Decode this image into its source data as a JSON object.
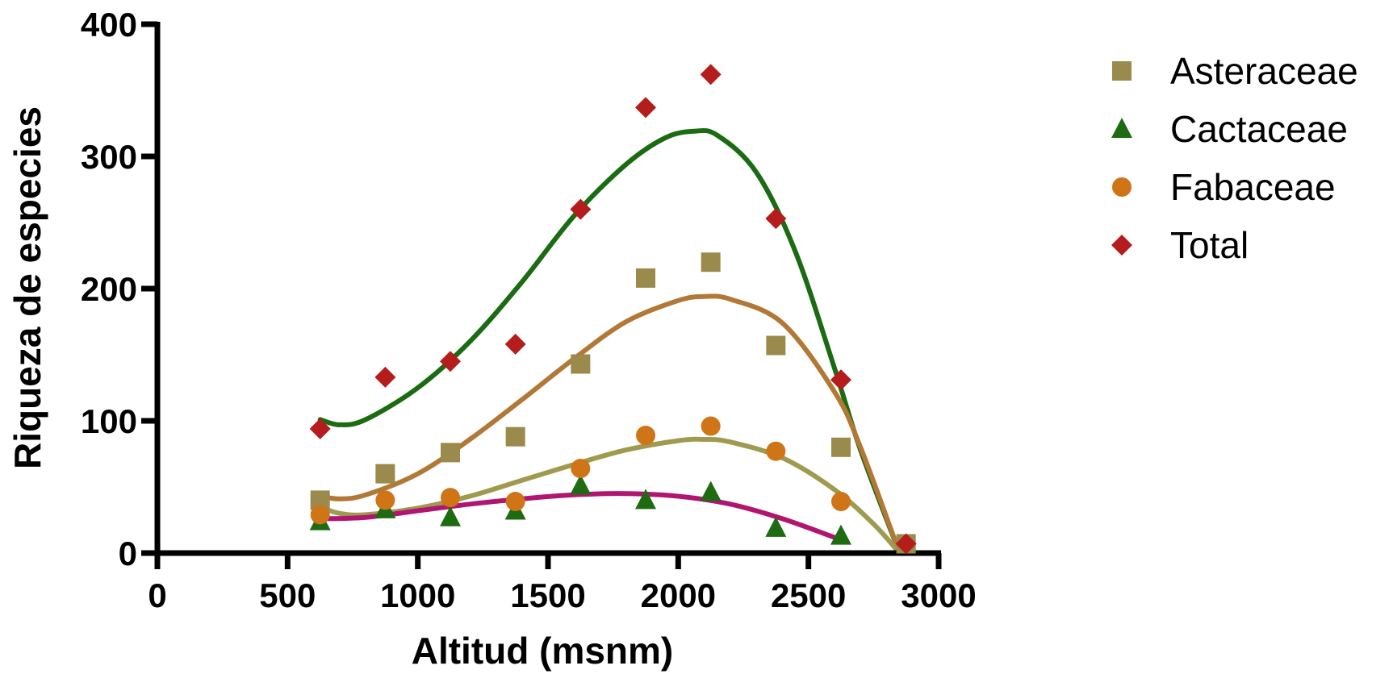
{
  "chart_data": {
    "type": "scatter",
    "xlabel": "Altitud (msnm)",
    "ylabel": "Riqueza de especies",
    "xlim": [
      0,
      3000
    ],
    "ylim": [
      0,
      400
    ],
    "x_ticks": [
      "0",
      "500",
      "1000",
      "1500",
      "2000",
      "2500",
      "3000"
    ],
    "y_ticks": [
      "0",
      "100",
      "200",
      "300",
      "400"
    ],
    "grid": false,
    "legend_position": "right",
    "series": [
      {
        "name": "Asteraceae",
        "marker": "square",
        "color": "#9A8A4C",
        "points": [
          [
            625,
            40
          ],
          [
            875,
            60
          ],
          [
            1125,
            76
          ],
          [
            1375,
            88
          ],
          [
            1625,
            143
          ],
          [
            1875,
            208
          ],
          [
            2125,
            220
          ],
          [
            2375,
            157
          ],
          [
            2625,
            80
          ],
          [
            2875,
            7
          ]
        ]
      },
      {
        "name": "Cactaceae",
        "marker": "triangle",
        "color": "#1E6B12",
        "points": [
          [
            625,
            24
          ],
          [
            875,
            33
          ],
          [
            1125,
            27
          ],
          [
            1375,
            32
          ],
          [
            1625,
            51
          ],
          [
            1875,
            40
          ],
          [
            2125,
            46
          ],
          [
            2375,
            19
          ],
          [
            2625,
            13
          ]
        ]
      },
      {
        "name": "Fabaceae",
        "marker": "circle",
        "color": "#D07418",
        "points": [
          [
            625,
            29
          ],
          [
            875,
            40
          ],
          [
            1125,
            42
          ],
          [
            1375,
            39
          ],
          [
            1625,
            64
          ],
          [
            1875,
            89
          ],
          [
            2125,
            96
          ],
          [
            2375,
            77
          ],
          [
            2625,
            39
          ]
        ]
      },
      {
        "name": "Total",
        "marker": "diamond",
        "color": "#B51C1C",
        "points": [
          [
            625,
            94
          ],
          [
            875,
            133
          ],
          [
            1125,
            145
          ],
          [
            1375,
            158
          ],
          [
            1625,
            260
          ],
          [
            1875,
            337
          ],
          [
            2125,
            362
          ],
          [
            2375,
            253
          ],
          [
            2625,
            131
          ],
          [
            2875,
            7
          ]
        ]
      }
    ],
    "fit_curves": [
      {
        "color": "#1A6B12",
        "points": [
          [
            625,
            101
          ],
          [
            700,
            97
          ],
          [
            800,
            101
          ],
          [
            1000,
            125
          ],
          [
            1200,
            160
          ],
          [
            1400,
            205
          ],
          [
            1600,
            255
          ],
          [
            1800,
            294
          ],
          [
            1950,
            314
          ],
          [
            2060,
            319
          ],
          [
            2150,
            316
          ],
          [
            2300,
            288
          ],
          [
            2450,
            228
          ],
          [
            2600,
            140
          ],
          [
            2700,
            78
          ],
          [
            2850,
            0
          ]
        ]
      },
      {
        "color": "#B27835",
        "points": [
          [
            625,
            43
          ],
          [
            700,
            41
          ],
          [
            800,
            44
          ],
          [
            1000,
            60
          ],
          [
            1200,
            86
          ],
          [
            1400,
            116
          ],
          [
            1600,
            147
          ],
          [
            1800,
            175
          ],
          [
            2000,
            191
          ],
          [
            2100,
            194
          ],
          [
            2200,
            192
          ],
          [
            2400,
            174
          ],
          [
            2600,
            122
          ],
          [
            2700,
            80
          ],
          [
            2850,
            0
          ]
        ]
      },
      {
        "color": "#A09A50",
        "points": [
          [
            625,
            35
          ],
          [
            700,
            30
          ],
          [
            800,
            29
          ],
          [
            1000,
            34
          ],
          [
            1200,
            43
          ],
          [
            1400,
            55
          ],
          [
            1600,
            67
          ],
          [
            1800,
            78
          ],
          [
            2000,
            85
          ],
          [
            2100,
            86
          ],
          [
            2200,
            84
          ],
          [
            2400,
            72
          ],
          [
            2600,
            48
          ],
          [
            2750,
            22
          ],
          [
            2850,
            0
          ]
        ]
      },
      {
        "color": "#B01670",
        "points": [
          [
            625,
            26
          ],
          [
            800,
            27
          ],
          [
            1000,
            32
          ],
          [
            1200,
            37
          ],
          [
            1400,
            41
          ],
          [
            1600,
            44
          ],
          [
            1800,
            45
          ],
          [
            2000,
            43
          ],
          [
            2200,
            37
          ],
          [
            2400,
            26
          ],
          [
            2625,
            10
          ]
        ]
      }
    ]
  }
}
